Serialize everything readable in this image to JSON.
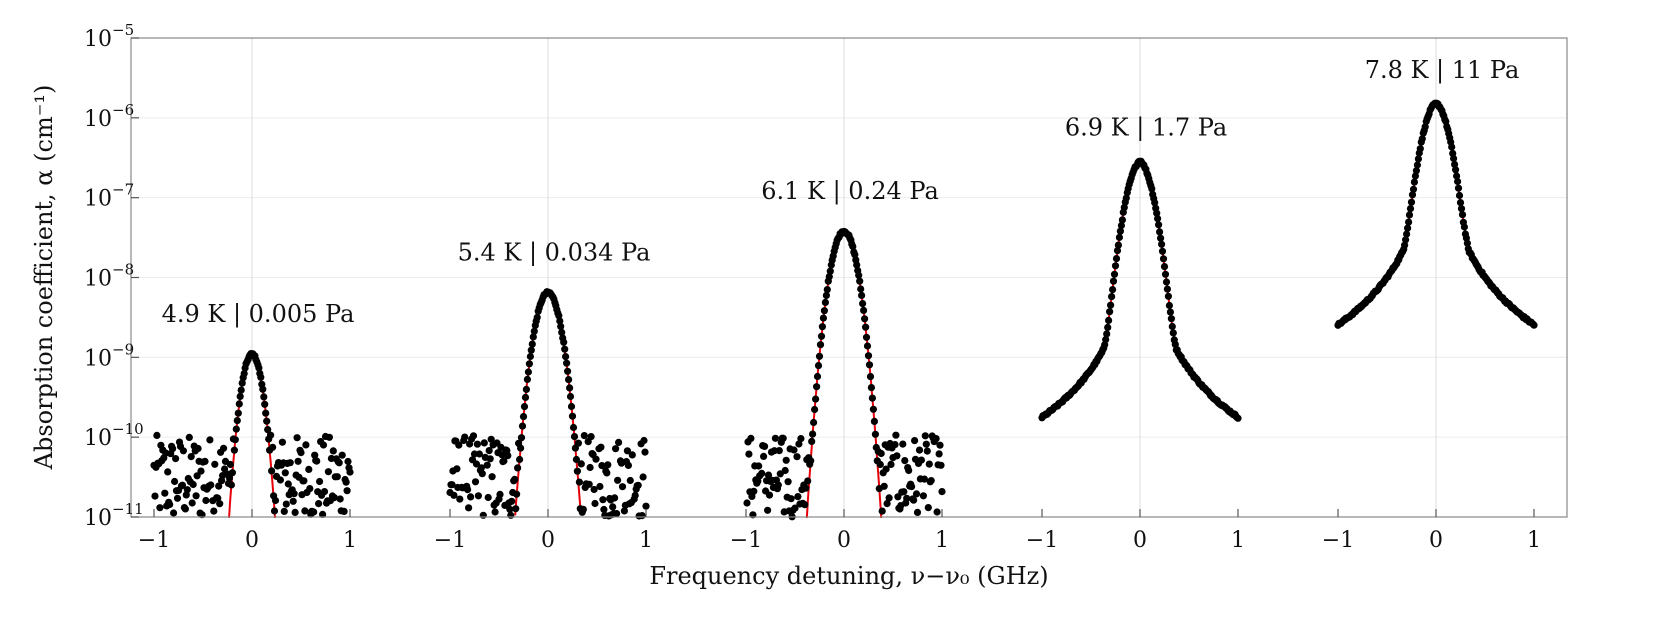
{
  "chart_data": {
    "type": "scatter",
    "title": "",
    "xlabel": "Frequency detuning, ν−ν₀ (GHz)",
    "ylabel": "Absorption coefficient, α (cm⁻¹)",
    "y_scale": "log",
    "ylim": [
      1e-11,
      1e-05
    ],
    "y_ticks": [
      {
        "mantissa": "10",
        "exp": "−11"
      },
      {
        "mantissa": "10",
        "exp": "−10"
      },
      {
        "mantissa": "10",
        "exp": "−9"
      },
      {
        "mantissa": "10",
        "exp": "−8"
      },
      {
        "mantissa": "10",
        "exp": "−7"
      },
      {
        "mantissa": "10",
        "exp": "−6"
      },
      {
        "mantissa": "10",
        "exp": "−5"
      }
    ],
    "x_ticks": [
      "−1",
      "0",
      "1"
    ],
    "x_range_per_panel": [
      -1,
      1
    ],
    "gridlines": true,
    "colors": {
      "data": "#000000",
      "fit": "#e8000b",
      "grid": "#dcdcdc",
      "frame": "#888888"
    },
    "series": [
      {
        "label": "4.9 K | 0.005 Pa",
        "peak": 1.1e-09,
        "doppler_hwhm": 0.09,
        "wing": 0,
        "noise_floor": 3e-11
      },
      {
        "label": "5.4 K | 0.034 Pa",
        "peak": 6.5e-09,
        "doppler_hwhm": 0.11,
        "wing": 0,
        "noise_floor": 3e-11
      },
      {
        "label": "6.1 K | 0.24 Pa",
        "peak": 3.8e-08,
        "doppler_hwhm": 0.11,
        "wing": 0,
        "noise_floor": 3e-11
      },
      {
        "label": "6.9 K | 1.7 Pa",
        "peak": 2.4e-07,
        "doppler_hwhm": 0.12,
        "wing": 0.0009,
        "noise_floor": 3e-11
      },
      {
        "label": "7.8 K | 11 Pa",
        "peak": 1.25e-06,
        "doppler_hwhm": 0.12,
        "wing": 0.0025,
        "noise_floor": 1.5e-10
      }
    ]
  }
}
